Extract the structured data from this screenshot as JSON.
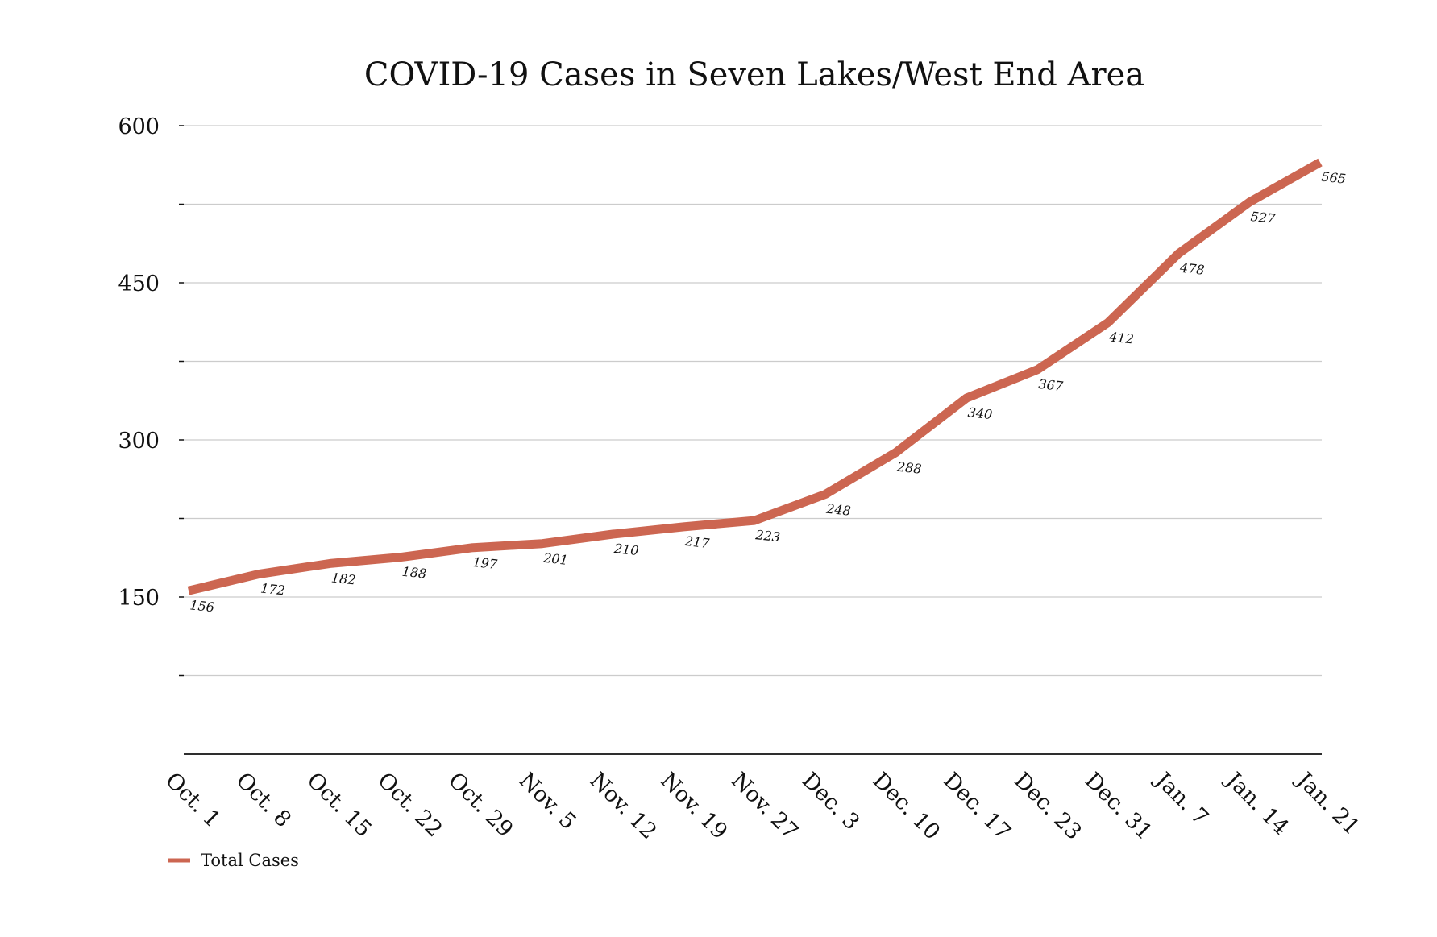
{
  "chart_data": {
    "type": "line",
    "title": "COVID-19 Cases in Seven Lakes/West End Area",
    "xlabel": "",
    "ylabel": "",
    "ylim": [
      0,
      600
    ],
    "yticks": [
      150,
      300,
      450,
      600
    ],
    "yminor_ticks": [
      75,
      225,
      375,
      525
    ],
    "ytick_labels": [
      "150",
      "300",
      "450",
      "600"
    ],
    "grid": true,
    "legend_position": "bottom-left",
    "categories": [
      "Oct. 1",
      "Oct. 8",
      "Oct. 15",
      "Oct. 22",
      "Oct. 29",
      "Nov. 5",
      "Nov. 12",
      "Nov. 19",
      "Nov. 27",
      "Dec. 3",
      "Dec. 10",
      "Dec. 17",
      "Dec. 23",
      "Dec. 31",
      "Jan. 7",
      "Jan. 14",
      "Jan. 21"
    ],
    "series": [
      {
        "name": "Total Cases",
        "color": "#cc6651",
        "values": [
          156,
          172,
          182,
          188,
          197,
          201,
          210,
          217,
          223,
          248,
          288,
          340,
          367,
          412,
          478,
          527,
          565
        ]
      }
    ]
  },
  "colors": {
    "line": "#cc6651",
    "grid": "#cccccc",
    "axis": "#111111",
    "text": "#111111"
  }
}
